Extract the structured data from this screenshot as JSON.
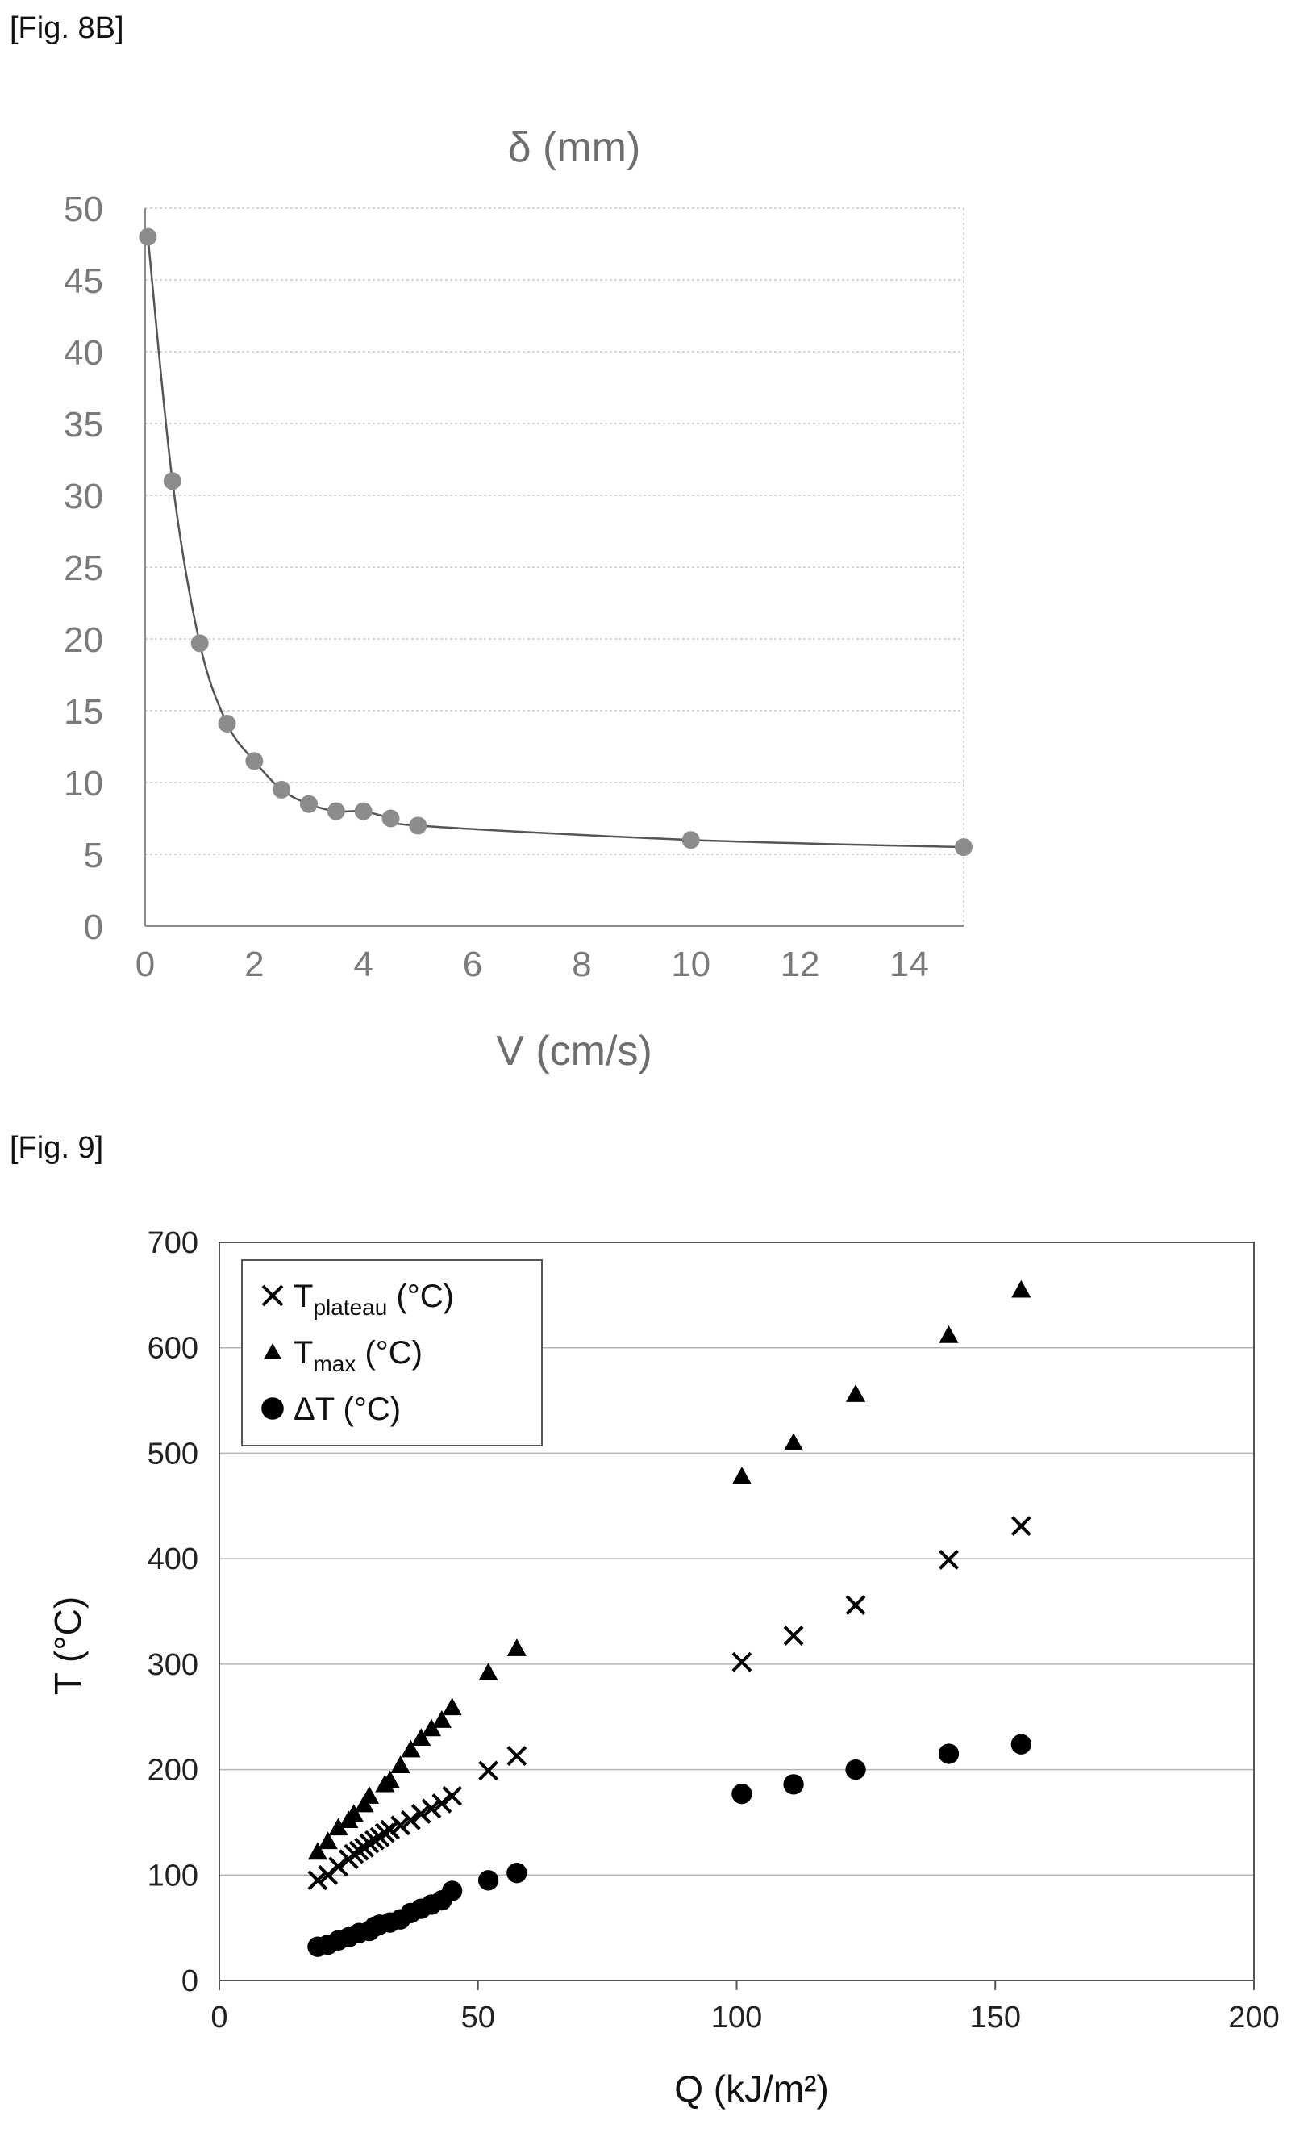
{
  "figures": {
    "fig8b_label": "[Fig. 8B]",
    "fig9_label": "[Fig. 9]"
  },
  "chart_data": [
    {
      "type": "line",
      "title": "δ (mm)",
      "xlabel": "V (cm/s)",
      "ylabel": "",
      "xlim": [
        0,
        15
      ],
      "ylim": [
        0,
        50
      ],
      "xticks": [
        "0",
        "2",
        "4",
        "6",
        "8",
        "10",
        "12",
        "14"
      ],
      "yticks": [
        "0",
        "5",
        "10",
        "15",
        "20",
        "25",
        "30",
        "35",
        "40",
        "45",
        "50"
      ],
      "grid": "horizontal",
      "series": [
        {
          "x": [
            0.05,
            0.5,
            1.0,
            1.5,
            2.0,
            2.5,
            3.0,
            3.5,
            4.0,
            4.5,
            5.0,
            10.0,
            15.0
          ],
          "y": [
            48.0,
            31.0,
            19.7,
            14.1,
            11.5,
            9.5,
            8.5,
            8.0,
            8.0,
            7.5,
            7.0,
            6.0,
            5.5
          ]
        }
      ],
      "colors": {
        "marker": "#8c8c8c",
        "line": "#555555",
        "axis": "#8c8c8c",
        "grid": "#c8c8c8"
      }
    },
    {
      "type": "scatter",
      "title": "",
      "xlabel": "Q (kJ/m²)",
      "ylabel": "T (°C)",
      "xlim": [
        0,
        200
      ],
      "ylim": [
        0,
        700
      ],
      "xticks": [
        "0",
        "50",
        "100",
        "150",
        "200"
      ],
      "yticks": [
        "0",
        "100",
        "200",
        "300",
        "400",
        "500",
        "600",
        "700"
      ],
      "grid": "horizontal",
      "legend": "top-left",
      "series": [
        {
          "name": "T",
          "name_sub": "plateau",
          "name_suffix": " (°C)",
          "marker": "x",
          "x": [
            19,
            21,
            23,
            25,
            26,
            27,
            28,
            29,
            30,
            31,
            32,
            33,
            35,
            37,
            39,
            41,
            43,
            45,
            52,
            57.5,
            101,
            111,
            123,
            141,
            155
          ],
          "y": [
            95,
            100,
            108,
            115,
            120,
            123,
            126,
            130,
            133,
            136,
            140,
            143,
            147,
            152,
            158,
            163,
            168,
            175,
            199,
            213,
            302,
            327,
            356,
            399,
            431
          ]
        },
        {
          "name": "T",
          "name_sub": "max",
          "name_suffix": " (°C)",
          "marker": "triangle",
          "x": [
            19,
            21,
            23,
            25,
            26,
            28,
            29,
            32,
            33,
            35,
            37,
            39,
            41,
            43,
            45,
            52,
            57.5,
            101,
            111,
            123,
            141,
            155
          ],
          "y": [
            122,
            132,
            145,
            152,
            158,
            167,
            175,
            186,
            190,
            204,
            219,
            230,
            239,
            247,
            259,
            292,
            315,
            478,
            510,
            556,
            612,
            655
          ]
        },
        {
          "name": "ΔT (°C)",
          "marker": "circle",
          "x": [
            19,
            21,
            23,
            25,
            27,
            29,
            30,
            31,
            33,
            35,
            37,
            39,
            41,
            43,
            45,
            52,
            57.5,
            101,
            111,
            123,
            141,
            155
          ],
          "y": [
            32,
            34,
            38,
            41,
            45,
            47,
            51,
            53,
            55,
            58,
            64,
            68,
            72,
            76,
            85,
            95,
            102,
            177,
            186,
            200,
            215,
            224
          ]
        }
      ],
      "colors": {
        "marker": "#000000",
        "axis": "#555555",
        "grid": "#b4b4b4",
        "frame": "#555555"
      }
    }
  ]
}
